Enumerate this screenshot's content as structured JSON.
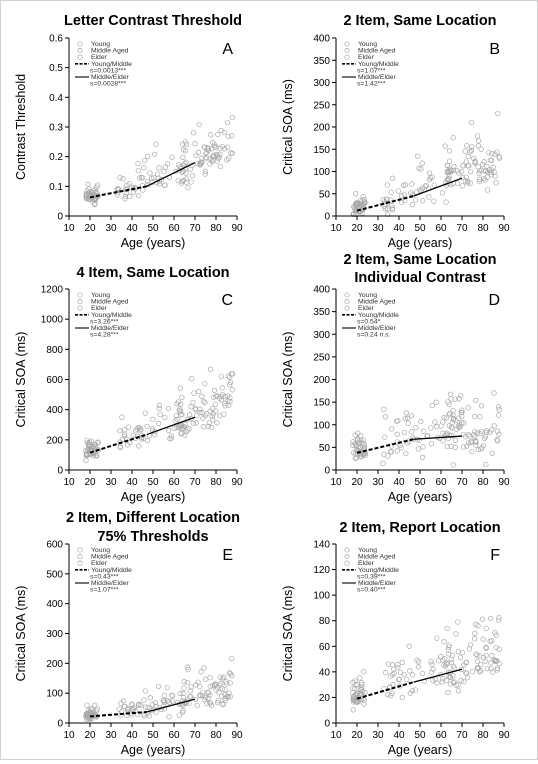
{
  "chart_data": [
    {
      "panel": "A",
      "type": "scatter",
      "title": [
        "Letter Contrast Threshold"
      ],
      "xlabel": "Age (years)",
      "ylabel": "Contrast Threshold",
      "xlim": [
        10,
        90
      ],
      "ylim": [
        0,
        0.6
      ],
      "xticks": [
        10,
        20,
        30,
        40,
        50,
        60,
        70,
        80,
        90
      ],
      "yticks": [
        0,
        0.1,
        0.2,
        0.3,
        0.4,
        0.5,
        0.6
      ],
      "ytick_labels": [
        "0",
        "0.1",
        "0.2",
        "0.3",
        "0.4",
        "0.5",
        "0.6"
      ],
      "legend": [
        "Young",
        "Middle Aged",
        "Elder",
        "Young/Middle",
        "s=0.0013***",
        "Middle/Elder",
        "s=0.0028***"
      ],
      "legend_position": "top-left",
      "young_middle_line": [
        [
          20,
          0.063
        ],
        [
          47,
          0.1
        ]
      ],
      "middle_elder_line": [
        [
          47,
          0.1
        ],
        [
          70,
          0.18
        ]
      ],
      "scatter": {
        "ybase": 0.06,
        "slope_young": 0.0013,
        "slope_elder": 0.0028,
        "spread": 0.05,
        "seed": 11
      },
      "marker_color": "#a8a8a8"
    },
    {
      "panel": "B",
      "type": "scatter",
      "title": [
        "2 Item, Same Location"
      ],
      "xlabel": "Age (years)",
      "ylabel": "Critical SOA (ms)",
      "xlim": [
        10,
        90
      ],
      "ylim": [
        0,
        400
      ],
      "xticks": [
        10,
        20,
        30,
        40,
        50,
        60,
        70,
        80,
        90
      ],
      "yticks": [
        0,
        50,
        100,
        150,
        200,
        250,
        300,
        350,
        400
      ],
      "ytick_labels": [
        "0",
        "50",
        "100",
        "150",
        "200",
        "250",
        "300",
        "350",
        "400"
      ],
      "legend": [
        "Young",
        "Middle Aged",
        "Elder",
        "Young/Middle",
        "s=1.07***",
        "Middle/Elder",
        "s=1.42***"
      ],
      "legend_position": "top-left",
      "young_middle_line": [
        [
          20,
          12
        ],
        [
          47,
          45
        ]
      ],
      "middle_elder_line": [
        [
          47,
          45
        ],
        [
          70,
          85
        ]
      ],
      "scatter": {
        "ybase": 15,
        "slope_young": 1.07,
        "slope_elder": 1.42,
        "spread": 35,
        "seed": 23
      },
      "marker_color": "#a8a8a8"
    },
    {
      "panel": "C",
      "type": "scatter",
      "title": [
        "4 Item, Same Location"
      ],
      "xlabel": "Age (years)",
      "ylabel": "Critical SOA (ms)",
      "xlim": [
        10,
        90
      ],
      "ylim": [
        0,
        1200
      ],
      "xticks": [
        10,
        20,
        30,
        40,
        50,
        60,
        70,
        80,
        90
      ],
      "yticks": [
        0,
        200,
        400,
        600,
        800,
        1000,
        1200
      ],
      "ytick_labels": [
        "0",
        "200",
        "400",
        "600",
        "800",
        "1000",
        "1200"
      ],
      "legend": [
        "Young",
        "Middle Aged",
        "Elder",
        "Young/Middle",
        "s=3.26***",
        "Middle/Elder",
        "s=4.28***"
      ],
      "legend_position": "top-left",
      "young_middle_line": [
        [
          20,
          115
        ],
        [
          47,
          235
        ]
      ],
      "middle_elder_line": [
        [
          47,
          235
        ],
        [
          70,
          350
        ]
      ],
      "scatter": {
        "ybase": 120,
        "slope_young": 3.26,
        "slope_elder": 4.28,
        "spread": 110,
        "seed": 37
      },
      "marker_color": "#a8a8a8"
    },
    {
      "panel": "D",
      "type": "scatter",
      "title": [
        "2 Item, Same Location",
        "Individual Contrast"
      ],
      "xlabel": "Age (years)",
      "ylabel": "Critical SOA (ms)",
      "xlim": [
        10,
        90
      ],
      "ylim": [
        0,
        400
      ],
      "xticks": [
        10,
        20,
        30,
        40,
        50,
        60,
        70,
        80,
        90
      ],
      "yticks": [
        0,
        50,
        100,
        150,
        200,
        250,
        300,
        350,
        400
      ],
      "ytick_labels": [
        "0",
        "50",
        "100",
        "150",
        "200",
        "250",
        "300",
        "350",
        "400"
      ],
      "legend": [
        "Young",
        "Middle Aged",
        "Elder",
        "Young/Middle",
        "s=0.54*",
        "Middle/Elder",
        "s=0.24 n.s."
      ],
      "legend_position": "top-left",
      "young_middle_line": [
        [
          20,
          38
        ],
        [
          47,
          68
        ]
      ],
      "middle_elder_line": [
        [
          47,
          68
        ],
        [
          70,
          75
        ]
      ],
      "scatter": {
        "ybase": 40,
        "slope_young": 0.54,
        "slope_elder": 0.24,
        "spread": 45,
        "seed": 41
      },
      "marker_color": "#a8a8a8"
    },
    {
      "panel": "E",
      "type": "scatter",
      "title": [
        "2 Item, Different Location",
        "75% Thresholds"
      ],
      "xlabel": "Age (years)",
      "ylabel": "Critical SOA (ms)",
      "xlim": [
        10,
        90
      ],
      "ylim": [
        0,
        600
      ],
      "xticks": [
        10,
        20,
        30,
        40,
        50,
        60,
        70,
        80,
        90
      ],
      "yticks": [
        0,
        100,
        200,
        300,
        400,
        500,
        600
      ],
      "ytick_labels": [
        "0",
        "100",
        "200",
        "300",
        "400",
        "500",
        "600"
      ],
      "legend": [
        "Young",
        "Middle Aged",
        "Elder",
        "Young/Middle",
        "s=0.43***",
        "Middle/Elder",
        "s=1.07***"
      ],
      "legend_position": "top-left",
      "young_middle_line": [
        [
          20,
          22
        ],
        [
          47,
          37
        ]
      ],
      "middle_elder_line": [
        [
          47,
          37
        ],
        [
          70,
          80
        ]
      ],
      "scatter": {
        "ybase": 25,
        "slope_young": 0.43,
        "slope_elder": 1.07,
        "spread": 40,
        "seed": 53
      },
      "marker_color": "#a8a8a8"
    },
    {
      "panel": "F",
      "type": "scatter",
      "title": [
        "2 Item, Report Location"
      ],
      "xlabel": "Age (years)",
      "ylabel": "Critical SOA (ms)",
      "xlim": [
        10,
        90
      ],
      "ylim": [
        0,
        140
      ],
      "xticks": [
        10,
        20,
        30,
        40,
        50,
        60,
        70,
        80,
        90
      ],
      "yticks": [
        0,
        20,
        40,
        60,
        80,
        100,
        120,
        140
      ],
      "ytick_labels": [
        "0",
        "20",
        "40",
        "60",
        "80",
        "100",
        "120",
        "140"
      ],
      "legend": [
        "Young",
        "Middle Aged",
        "Elder",
        "Young/Middle",
        "s=0.39***",
        "Middle/Elder",
        "s=0.40***"
      ],
      "legend_position": "top-left",
      "young_middle_line": [
        [
          20,
          19
        ],
        [
          47,
          32
        ]
      ],
      "middle_elder_line": [
        [
          47,
          32
        ],
        [
          70,
          42
        ]
      ],
      "scatter": {
        "ybase": 20,
        "slope_young": 0.39,
        "slope_elder": 0.4,
        "spread": 15,
        "seed": 67
      },
      "marker_color": "#a8a8a8"
    }
  ]
}
